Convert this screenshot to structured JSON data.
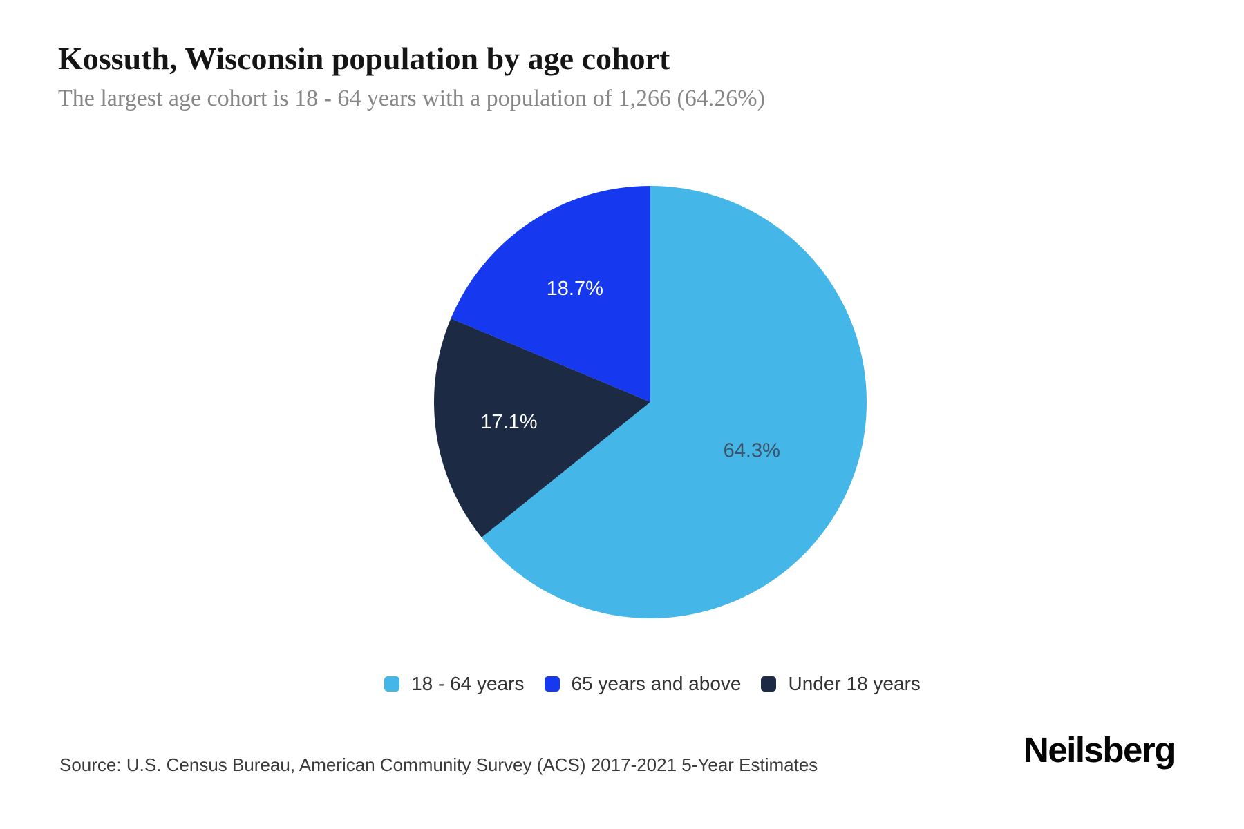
{
  "header": {
    "title": "Kossuth, Wisconsin population by age cohort",
    "subtitle": "The largest age cohort is 18 - 64 years with a population of 1,266 (64.26%)"
  },
  "chart_data": {
    "type": "pie",
    "title": "Kossuth, Wisconsin population by age cohort",
    "unit": "percent of population",
    "start_angle_deg": 0,
    "direction": "clockwise",
    "labels_position": "inside",
    "legend_position": "bottom",
    "largest_cohort": {
      "label": "18 - 64 years",
      "population": "1,266",
      "share": "64.26%"
    },
    "slices": [
      {
        "label": "18 - 64 years",
        "value": 64.3,
        "display": "64.3%",
        "color": "#45b6e8",
        "label_color": "#3d5368"
      },
      {
        "label": "Under 18 years",
        "value": 17.1,
        "display": "17.1%",
        "color": "#1c2b43",
        "label_color": "#ffffff"
      },
      {
        "label": "65 years and above",
        "value": 18.7,
        "display": "18.7%",
        "color": "#1639f0",
        "label_color": "#ffffff"
      }
    ]
  },
  "legend": {
    "items": [
      {
        "label": "18 - 64 years",
        "color": "#45b6e8"
      },
      {
        "label": "65 years and above",
        "color": "#1639f0"
      },
      {
        "label": "Under 18 years",
        "color": "#1c2b43"
      }
    ]
  },
  "footer": {
    "source": "Source: U.S. Census Bureau, American Community Survey (ACS) 2017-2021 5-Year Estimates",
    "brand": "Neilsberg"
  }
}
